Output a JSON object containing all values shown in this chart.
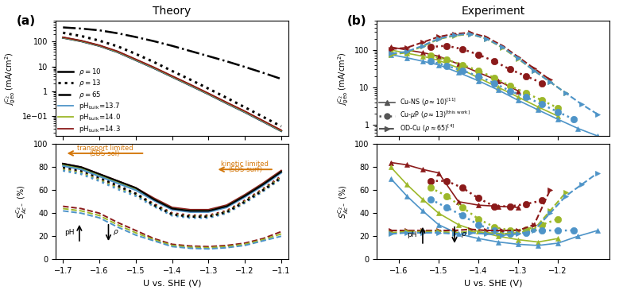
{
  "title_a": "Theory",
  "title_b": "Experiment",
  "xlabel": "U vs. SHE (V)",
  "theory_top": {
    "x": [
      -1.7,
      -1.65,
      -1.6,
      -1.55,
      -1.5,
      -1.45,
      -1.4,
      -1.35,
      -1.3,
      -1.25,
      -1.2,
      -1.15,
      -1.1
    ],
    "rho10": [
      145,
      105,
      68,
      38,
      18,
      8.5,
      3.8,
      1.7,
      0.75,
      0.32,
      0.14,
      0.058,
      0.024
    ],
    "rho13": [
      230,
      170,
      110,
      65,
      32,
      15,
      6.5,
      2.9,
      1.25,
      0.53,
      0.22,
      0.09,
      0.037
    ],
    "rho65": [
      380,
      340,
      290,
      220,
      155,
      105,
      68,
      42,
      26,
      16,
      9.5,
      5.5,
      3.1
    ],
    "pH137": [
      145,
      105,
      68,
      38,
      18,
      8.5,
      3.8,
      1.7,
      0.75,
      0.32,
      0.14,
      0.058,
      0.024
    ],
    "pH140": [
      148,
      108,
      70,
      39.5,
      18.8,
      8.9,
      3.95,
      1.78,
      0.78,
      0.335,
      0.147,
      0.061,
      0.025
    ],
    "pH143": [
      152,
      111,
      72,
      41,
      19.5,
      9.2,
      4.1,
      1.85,
      0.81,
      0.348,
      0.153,
      0.063,
      0.026
    ]
  },
  "theory_bot": {
    "x": [
      -1.7,
      -1.65,
      -1.6,
      -1.55,
      -1.5,
      -1.45,
      -1.4,
      -1.35,
      -1.3,
      -1.25,
      -1.2,
      -1.15,
      -1.1
    ],
    "rho10_black": [
      83,
      80,
      74,
      68,
      62,
      52,
      44,
      42,
      42,
      46,
      55,
      65,
      76
    ],
    "rho13_black": [
      80,
      77,
      71,
      64,
      57,
      47,
      39,
      37,
      37,
      41,
      50,
      60,
      71
    ],
    "rho10_pH143": [
      83,
      80,
      74,
      68,
      62,
      53,
      45,
      43,
      43,
      47,
      56,
      66,
      77
    ],
    "rho10_pH140": [
      82,
      79,
      73,
      67,
      61,
      52,
      44,
      42,
      42,
      46,
      55,
      65,
      76
    ],
    "rho10_pH137": [
      81,
      78,
      72,
      66,
      60,
      51,
      43,
      41,
      41,
      45,
      54,
      64,
      75
    ],
    "rho13_pH143": [
      79,
      76,
      70,
      63,
      57,
      48,
      40,
      38,
      38,
      42,
      51,
      61,
      72
    ],
    "rho13_pH140": [
      78,
      75,
      69,
      62,
      56,
      47,
      39,
      37,
      37,
      41,
      50,
      60,
      71
    ],
    "rho13_pH137": [
      77,
      74,
      68,
      61,
      55,
      46,
      38,
      36,
      36,
      40,
      49,
      59,
      70
    ],
    "rho65_pH143": [
      46,
      44,
      40,
      32,
      25,
      18,
      13,
      11.5,
      11,
      12,
      14,
      18,
      24
    ],
    "rho65_pH140": [
      44,
      42,
      38,
      30,
      23,
      17,
      12,
      10.5,
      10,
      11,
      13,
      17,
      22
    ],
    "rho65_pH137": [
      42,
      40,
      36,
      28,
      21,
      16,
      11,
      9.5,
      9,
      10,
      12,
      16,
      20
    ]
  },
  "exp_top": {
    "CuNS_pH137_x": [
      -1.62,
      -1.58,
      -1.54,
      -1.5,
      -1.45,
      -1.4,
      -1.35,
      -1.3,
      -1.25,
      -1.2,
      -1.15,
      -1.1
    ],
    "CuNS_pH137_y": [
      75,
      62,
      50,
      40,
      25,
      15,
      8.5,
      4.5,
      2.5,
      1.4,
      0.8,
      0.5
    ],
    "CuNS_pH140_x": [
      -1.62,
      -1.58,
      -1.54,
      -1.5,
      -1.45,
      -1.4,
      -1.35,
      -1.3,
      -1.25,
      -1.2
    ],
    "CuNS_pH140_y": [
      100,
      82,
      68,
      53,
      33,
      18,
      10,
      5.5,
      3.0,
      1.7
    ],
    "CuNS_pH143_x": [
      -1.62,
      -1.58,
      -1.54,
      -1.5,
      -1.45,
      -1.4,
      -1.35,
      -1.3
    ],
    "CuNS_pH143_y": [
      120,
      100,
      85,
      68,
      42,
      25,
      15,
      8
    ],
    "CumuP_pH137_x": [
      -1.52,
      -1.48,
      -1.44,
      -1.4,
      -1.36,
      -1.32,
      -1.28,
      -1.24,
      -1.2,
      -1.16
    ],
    "CumuP_pH137_y": [
      50,
      38,
      28,
      20,
      13,
      8,
      5.5,
      3.5,
      2.2,
      1.4
    ],
    "CumuP_pH140_x": [
      -1.52,
      -1.48,
      -1.44,
      -1.4,
      -1.36,
      -1.32,
      -1.28,
      -1.24,
      -1.2
    ],
    "CumuP_pH140_y": [
      70,
      55,
      40,
      28,
      18,
      11,
      7,
      4.5,
      2.8
    ],
    "CumuP_pH143_x": [
      -1.52,
      -1.48,
      -1.44,
      -1.4,
      -1.36,
      -1.32,
      -1.28,
      -1.24
    ],
    "CumuP_pH143_y": [
      120,
      130,
      105,
      75,
      50,
      30,
      20,
      13
    ],
    "ODCu_pH137_x": [
      -1.62,
      -1.58,
      -1.54,
      -1.5,
      -1.46,
      -1.42,
      -1.38,
      -1.34,
      -1.3,
      -1.26,
      -1.22,
      -1.18,
      -1.14,
      -1.1
    ],
    "ODCu_pH137_y": [
      80,
      90,
      130,
      200,
      250,
      270,
      200,
      120,
      60,
      28,
      14,
      7,
      3.5,
      1.9
    ],
    "ODCu_pH140_x": [
      -1.62,
      -1.58,
      -1.54,
      -1.5,
      -1.46,
      -1.42,
      -1.38,
      -1.34,
      -1.3,
      -1.26,
      -1.22,
      -1.18
    ],
    "ODCu_pH140_y": [
      75,
      85,
      125,
      195,
      240,
      265,
      200,
      115,
      58,
      28,
      14,
      7
    ],
    "ODCu_pH143_x": [
      -1.62,
      -1.58,
      -1.54,
      -1.5,
      -1.46,
      -1.42,
      -1.38,
      -1.34,
      -1.3,
      -1.26,
      -1.22
    ],
    "ODCu_pH143_y": [
      105,
      115,
      160,
      225,
      270,
      290,
      220,
      130,
      65,
      32,
      16
    ]
  },
  "exp_bot": {
    "CuNS_pH137_x": [
      -1.62,
      -1.58,
      -1.54,
      -1.5,
      -1.45,
      -1.4,
      -1.35,
      -1.3,
      -1.25,
      -1.2,
      -1.15,
      -1.1
    ],
    "CuNS_pH137_y": [
      70,
      55,
      42,
      30,
      22,
      18,
      15,
      13,
      12,
      14,
      20,
      25
    ],
    "CuNS_pH140_x": [
      -1.62,
      -1.58,
      -1.54,
      -1.5,
      -1.45,
      -1.4,
      -1.35,
      -1.3,
      -1.25,
      -1.2
    ],
    "CuNS_pH140_y": [
      80,
      65,
      52,
      40,
      30,
      24,
      20,
      17,
      15,
      18
    ],
    "CuNS_pH143_x": [
      -1.62,
      -1.58,
      -1.54,
      -1.5,
      -1.45,
      -1.4,
      -1.35,
      -1.3
    ],
    "CuNS_pH143_y": [
      84,
      82,
      78,
      75,
      50,
      47,
      46,
      45
    ],
    "CumuP_pH137_x": [
      -1.52,
      -1.48,
      -1.44,
      -1.4,
      -1.36,
      -1.32,
      -1.28,
      -1.24,
      -1.2,
      -1.16
    ],
    "CumuP_pH137_y": [
      52,
      45,
      38,
      30,
      25,
      22,
      23,
      25,
      25,
      25
    ],
    "CumuP_pH140_x": [
      -1.52,
      -1.48,
      -1.44,
      -1.4,
      -1.36,
      -1.32,
      -1.28,
      -1.24,
      -1.2
    ],
    "CumuP_pH140_y": [
      62,
      55,
      45,
      35,
      28,
      25,
      26,
      30,
      35
    ],
    "CumuP_pH143_x": [
      -1.52,
      -1.48,
      -1.44,
      -1.4,
      -1.36,
      -1.32,
      -1.28,
      -1.24
    ],
    "CumuP_pH143_y": [
      68,
      68,
      62,
      53,
      46,
      46,
      48,
      51
    ],
    "ODCu_pH137_x": [
      -1.62,
      -1.58,
      -1.54,
      -1.5,
      -1.46,
      -1.42,
      -1.38,
      -1.34,
      -1.3,
      -1.26,
      -1.22,
      -1.18,
      -1.14,
      -1.1
    ],
    "ODCu_pH137_y": [
      22,
      23,
      23,
      23,
      22,
      23,
      22,
      21,
      22,
      25,
      40,
      55,
      65,
      75
    ],
    "ODCu_pH140_x": [
      -1.62,
      -1.58,
      -1.54,
      -1.5,
      -1.46,
      -1.42,
      -1.38,
      -1.34,
      -1.3,
      -1.26,
      -1.22,
      -1.18
    ],
    "ODCu_pH140_y": [
      23,
      24,
      24,
      24,
      23,
      24,
      23,
      22,
      23,
      26,
      42,
      58
    ],
    "ODCu_pH143_x": [
      -1.62,
      -1.58,
      -1.54,
      -1.5,
      -1.46,
      -1.42,
      -1.38,
      -1.34,
      -1.3,
      -1.26,
      -1.22
    ],
    "ODCu_pH143_y": [
      25,
      25,
      25,
      25,
      25,
      26,
      25,
      25,
      25,
      30,
      60
    ]
  },
  "colors": {
    "pH137": "#4e94c8",
    "pH140": "#9db82a",
    "pH143": "#8b1a1a",
    "black": "#000000",
    "orange": "#d4770a"
  }
}
